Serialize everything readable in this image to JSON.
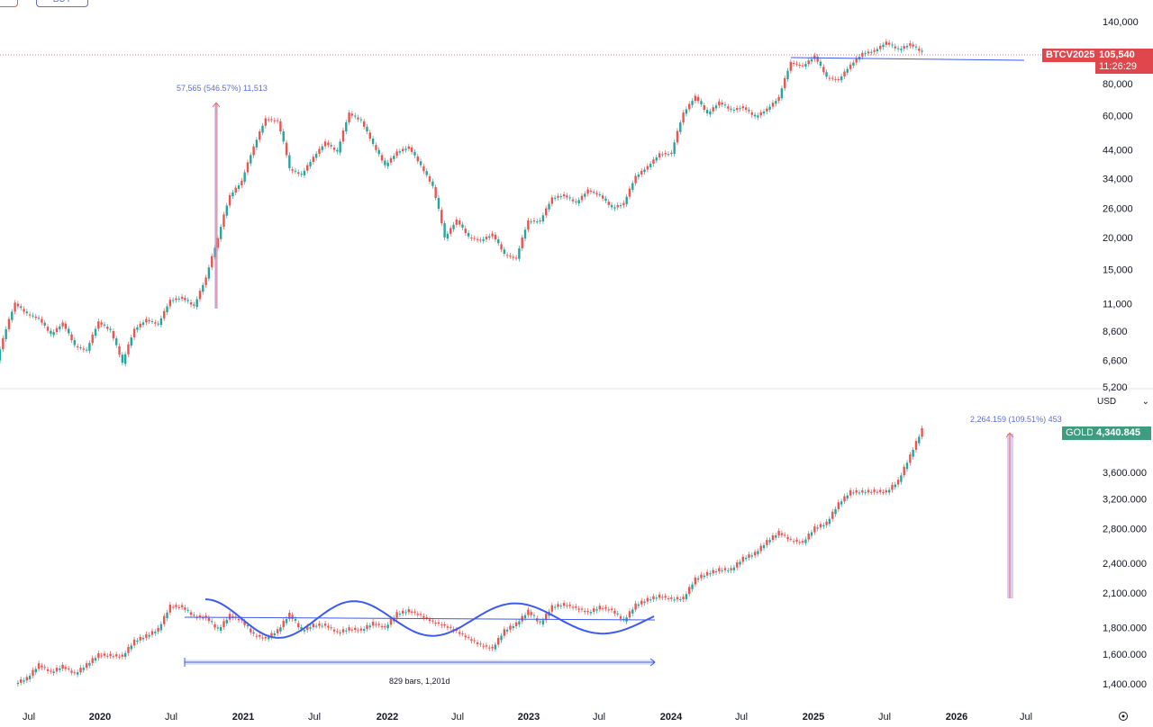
{
  "toolbar": {
    "sell_label": "",
    "buy_label": "BUY"
  },
  "currency_select": {
    "value": "USD"
  },
  "colors": {
    "up": "#26a69a",
    "down": "#ef5350",
    "btc_tag": "#e0474c",
    "gold_tag": "#3f9c7f",
    "drawing": "#3d5af1",
    "measure": "#b39ddb"
  },
  "chart_data": [
    {
      "type": "candlestick",
      "symbol": "BTCV2025",
      "scale": "log",
      "last_price": "105,540",
      "countdown": "11:26:29",
      "y_ticks": [
        "140,000",
        "80,000",
        "60,000",
        "44,000",
        "34,000",
        "26,000",
        "20,000",
        "15,000",
        "11,000",
        "8,600",
        "6,600",
        "5,200"
      ],
      "y_tick_values": [
        140000,
        80000,
        60000,
        44000,
        34000,
        26000,
        20000,
        15000,
        11000,
        8600,
        6600,
        5200
      ],
      "monthly_close": {
        "start": "2019-04",
        "values": [
          5200,
          8000,
          11000,
          10000,
          9600,
          8300,
          9200,
          7500,
          7200,
          9300,
          8600,
          6400,
          8700,
          9500,
          9100,
          11300,
          11600,
          10700,
          13800,
          19700,
          29000,
          33000,
          45000,
          58000,
          57000,
          37000,
          35000,
          41000,
          47000,
          43000,
          61000,
          57000,
          46000,
          38000,
          43000,
          45000,
          38000,
          31500,
          19800,
          23300,
          20000,
          19400,
          20500,
          17100,
          16500,
          23100,
          23100,
          28400,
          29200,
          27200,
          30500,
          29200,
          26000,
          27000,
          34500,
          37700,
          42300,
          42500,
          61000,
          71000,
          60600,
          67500,
          62700,
          64600,
          59000,
          63300,
          70200,
          96400,
          93400,
          102000,
          84300,
          82500,
          94200,
          104600,
          107100,
          115700,
          108200,
          114000,
          105540
        ]
      },
      "annotations": {
        "measure": "57,565 (546.57%) 11,513"
      }
    },
    {
      "type": "candlestick",
      "symbol": "GOLD",
      "scale": "log",
      "last_price": "4,340.845",
      "y_ticks": [
        "3,600.000",
        "3,200.000",
        "2,800.000",
        "2,400.000",
        "2,100.000",
        "1,800.000",
        "1,600.000",
        "1,400.000"
      ],
      "y_tick_values": [
        3600,
        3200,
        2800,
        2400,
        2100,
        1800,
        1600,
        1400
      ],
      "monthly_close": {
        "start": "2019-06",
        "values": [
          1400,
          1430,
          1520,
          1470,
          1510,
          1460,
          1520,
          1590,
          1585,
          1580,
          1690,
          1730,
          1780,
          1975,
          1970,
          1885,
          1880,
          1775,
          1895,
          1850,
          1735,
          1710,
          1770,
          1905,
          1770,
          1815,
          1815,
          1755,
          1785,
          1775,
          1830,
          1795,
          1910,
          1935,
          1895,
          1840,
          1810,
          1765,
          1710,
          1660,
          1635,
          1770,
          1825,
          1930,
          1825,
          1970,
          1990,
          1960,
          1920,
          1965,
          1940,
          1850,
          1985,
          2035,
          2065,
          2040,
          2045,
          2230,
          2285,
          2325,
          2325,
          2445,
          2500,
          2635,
          2745,
          2650,
          2625,
          2800,
          2860,
          3120,
          3290,
          3290,
          3300,
          3290,
          3450,
          3860,
          4340.845
        ]
      },
      "annotations": {
        "measure": "2,264.159 (109.51%) 453",
        "date_range": "829 bars, 1,201d"
      }
    }
  ],
  "x_axis": {
    "ticks": [
      "Jul",
      "2020",
      "Jul",
      "2021",
      "Jul",
      "2022",
      "Jul",
      "2023",
      "Jul",
      "2024",
      "Jul",
      "2025",
      "Jul",
      "2026",
      "Jul"
    ]
  }
}
